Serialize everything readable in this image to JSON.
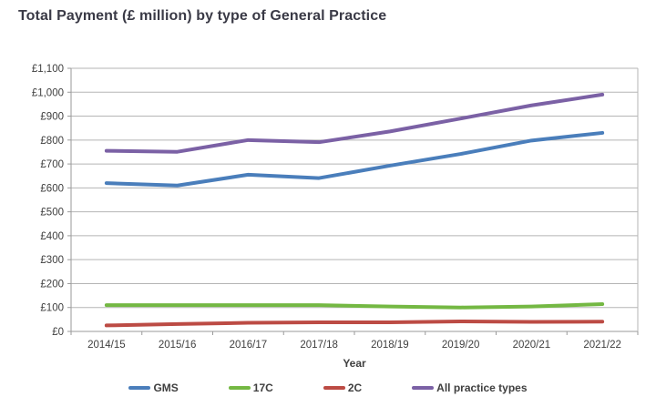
{
  "chart": {
    "title": "Total Payment (£ million) by type of General Practice",
    "xlabel": "Year"
  },
  "chart_data": {
    "type": "line",
    "title": "Total Payment (£ million) by type of General Practice",
    "xlabel": "Year",
    "ylabel": "",
    "categories": [
      "2014/15",
      "2015/16",
      "2016/17",
      "2017/18",
      "2018/19",
      "2019/20",
      "2020/21",
      "2021/22"
    ],
    "series": [
      {
        "name": "GMS",
        "color": "#4a7ebb",
        "values": [
          620,
          610,
          655,
          641,
          693,
          742,
          798,
          830
        ]
      },
      {
        "name": "17C",
        "color": "#74b843",
        "values": [
          110,
          110,
          110,
          110,
          104,
          100,
          104,
          114
        ]
      },
      {
        "name": "2C",
        "color": "#bc4b44",
        "values": [
          25,
          31,
          36,
          38,
          38,
          42,
          40,
          41
        ]
      },
      {
        "name": "All practice types",
        "color": "#7b61a5",
        "values": [
          755,
          751,
          800,
          791,
          836,
          890,
          945,
          990
        ]
      }
    ],
    "ylim": [
      0,
      1100
    ],
    "ytick_step": 100,
    "ytick_labels": [
      "£0",
      "£100",
      "£200",
      "£300",
      "£400",
      "£500",
      "£600",
      "£700",
      "£800",
      "£900",
      "£1,000",
      "£1,100"
    ],
    "grid": true,
    "legend_position": "bottom",
    "currency_prefix": "£"
  },
  "colors": {
    "grid": "#b5b5b5",
    "axis": "#9a9a9a",
    "tick": "#9a9a9a",
    "label_text": "#3f3f3f",
    "title_text": "#3a3a46",
    "background": "#ffffff"
  }
}
